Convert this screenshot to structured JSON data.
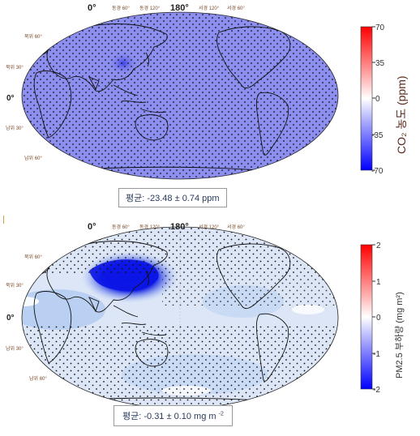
{
  "chart_data": [
    {
      "type": "heatmap",
      "projection": "Robinson",
      "title": "",
      "lon_labels_top": [
        "0°",
        "동경 60°",
        "동경 120°",
        "180°",
        "서경 120°",
        "서경 60°"
      ],
      "lat_labels_left": [
        "북위 60°",
        "북위 30°",
        "0°",
        "남위 30°",
        "남위 60°"
      ],
      "colorbar": {
        "label": "CO₂ 농도 (ppm)",
        "ticks": [
          "70",
          "35",
          "0",
          "-35",
          "-70"
        ],
        "range": [
          -70,
          70
        ],
        "colors": {
          "low": "#1a1aff",
          "mid": "#ffffff",
          "high": "#ff1a1a"
        }
      },
      "mean_text": "평균: -23.48 ± 0.74 ppm",
      "field_description_values": {
        "background": -30,
        "east_asia_peak": -45
      },
      "stippling": "significant everywhere"
    },
    {
      "type": "heatmap",
      "projection": "Robinson",
      "title": "",
      "lon_labels_top": [
        "0°",
        "동경 60°",
        "동경 120°",
        "180°",
        "서경 120°",
        "서경 60°"
      ],
      "lat_labels_left": [
        "북위 60°",
        "북위 30°",
        "0°",
        "남위 30°",
        "남위 60°"
      ],
      "colorbar": {
        "label": "PM2.5 부하량 (mg m²)",
        "ticks": [
          "2",
          "1",
          "0",
          "-1",
          "-2"
        ],
        "range": [
          -2,
          2
        ],
        "colors": {
          "low": "#1a1aff",
          "mid": "#ffffff",
          "high": "#ff1a1a"
        }
      },
      "mean_text": "평균: -0.31 ± 0.10 mg m",
      "mean_sup": "-2",
      "field_description_values": {
        "east_asia_peak": -2,
        "background": -0.1
      },
      "stippling": "partial"
    }
  ],
  "colors": {
    "co2_fill": "#8c8ef0",
    "co2_dark": "#4a50e0",
    "pm_fill": "#dde6f7",
    "pm_blue": "#1f2ee6",
    "pm_light_blue": "#aac6f0",
    "text_brown": "#7a4a2a"
  }
}
